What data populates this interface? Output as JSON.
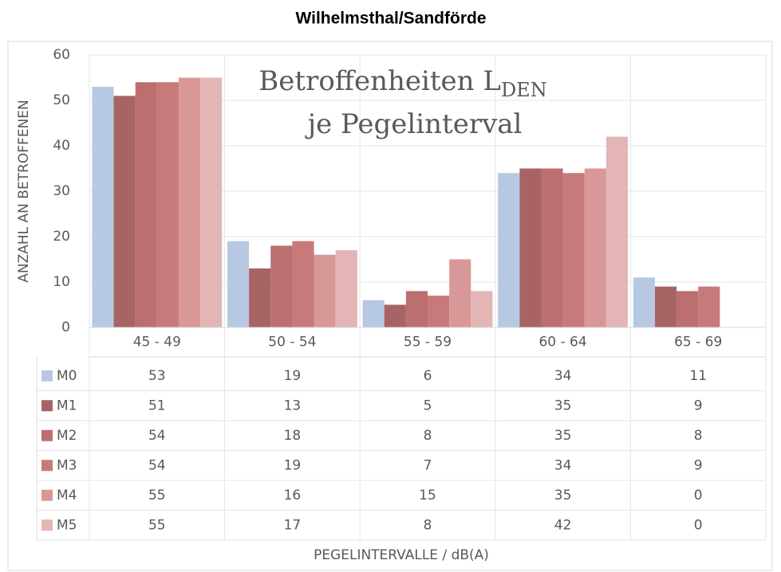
{
  "chart_data": {
    "type": "bar",
    "title": "Wilhelmsthal/Sandförde",
    "annotation": {
      "line1": "Betroffenheiten L",
      "subscript": "DEN",
      "line2": "je Pegelinterval"
    },
    "y_label": "ANZAHL AN BETROFFENEN",
    "x_label": "PEGELINTERVALLE / dB(A)",
    "categories": [
      "45 - 49",
      "50 - 54",
      "55 - 59",
      "60 - 64",
      "65 - 69"
    ],
    "series": [
      {
        "name": "M0",
        "color": "#b7c9e2",
        "values": [
          53,
          19,
          6,
          34,
          11
        ]
      },
      {
        "name": "M1",
        "color": "#a86464",
        "values": [
          51,
          13,
          5,
          35,
          9
        ]
      },
      {
        "name": "M2",
        "color": "#bc6f6f",
        "values": [
          54,
          18,
          8,
          35,
          8
        ]
      },
      {
        "name": "M3",
        "color": "#c87a7a",
        "values": [
          54,
          19,
          7,
          34,
          9
        ]
      },
      {
        "name": "M4",
        "color": "#d89898",
        "values": [
          55,
          16,
          15,
          35,
          0
        ]
      },
      {
        "name": "M5",
        "color": "#e3b5b5",
        "values": [
          55,
          17,
          8,
          42,
          0
        ]
      }
    ],
    "ylim": [
      0,
      60
    ],
    "yticks": [
      0,
      10,
      20,
      30,
      40,
      50,
      60
    ],
    "grid": true
  }
}
